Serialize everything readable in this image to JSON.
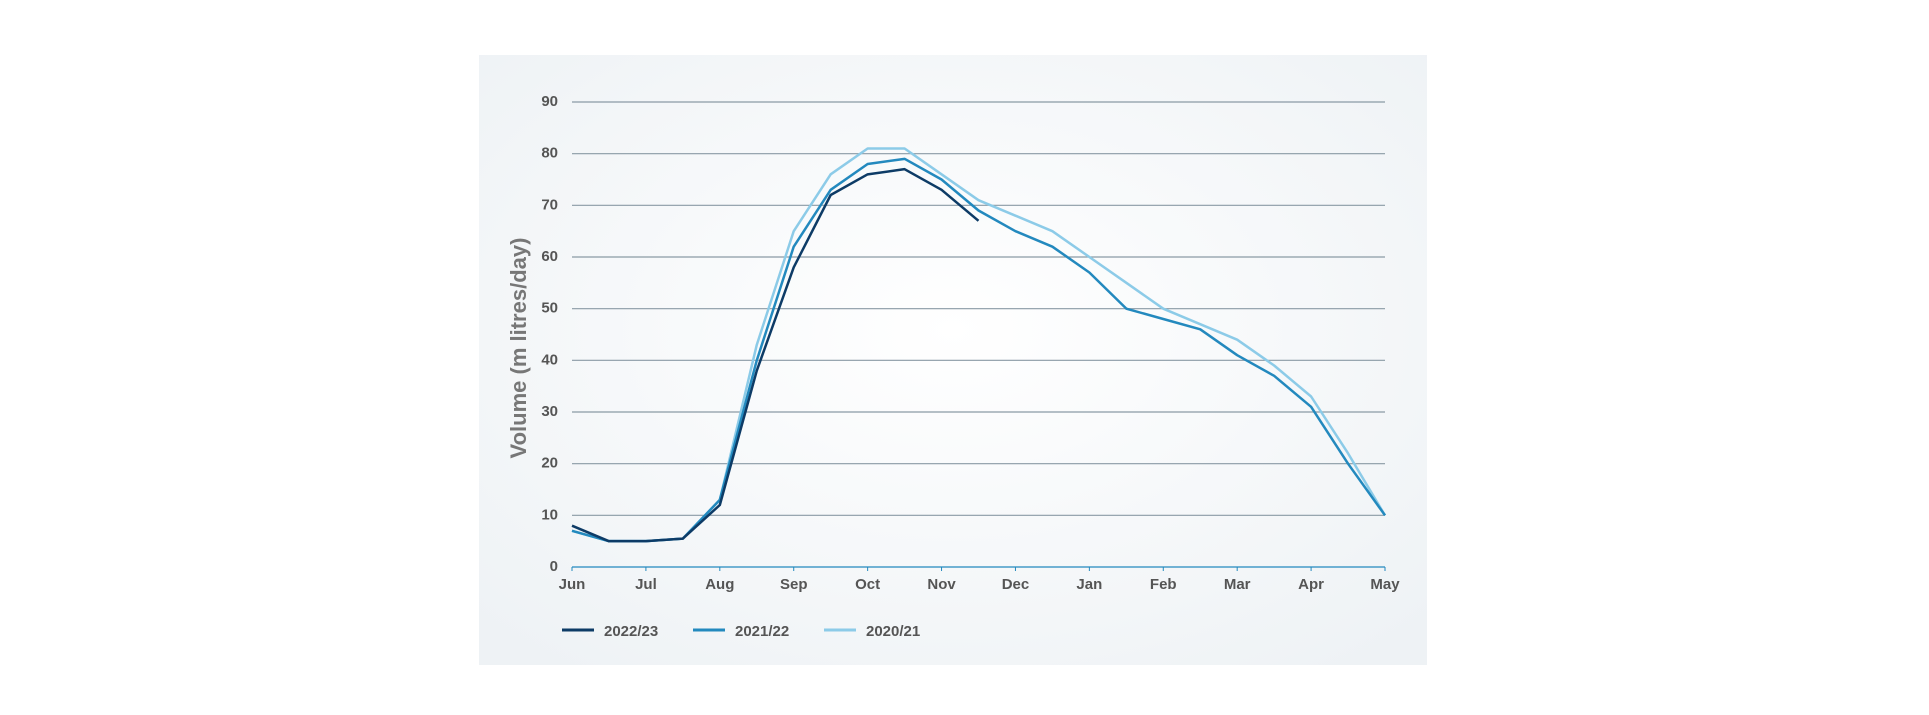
{
  "chart_data": {
    "type": "line",
    "y_label": "Volume (m litres/day)",
    "x": [
      0,
      0.5,
      1,
      1.5,
      2,
      2.5,
      3,
      3.5,
      4,
      4.5,
      5,
      5.5,
      6,
      6.5,
      7,
      7.5,
      8,
      8.5,
      9,
      9.5,
      10,
      10.5,
      11
    ],
    "xlim": [
      0,
      11
    ],
    "xticks": [
      {
        "value": 0,
        "label": "Jun"
      },
      {
        "value": 1,
        "label": "Jul"
      },
      {
        "value": 2,
        "label": "Aug"
      },
      {
        "value": 3,
        "label": "Sep"
      },
      {
        "value": 4,
        "label": "Oct"
      },
      {
        "value": 5,
        "label": "Nov"
      },
      {
        "value": 6,
        "label": "Dec"
      },
      {
        "value": 7,
        "label": "Jan"
      },
      {
        "value": 8,
        "label": "Feb"
      },
      {
        "value": 9,
        "label": "Mar"
      },
      {
        "value": 10,
        "label": "Apr"
      },
      {
        "value": 11,
        "label": "May"
      }
    ],
    "ylim": [
      0,
      90
    ],
    "yticks": [
      0,
      10,
      20,
      30,
      40,
      50,
      60,
      70,
      80,
      90
    ],
    "grid": true,
    "legend": "bottom",
    "series": [
      {
        "name": "2022/23",
        "color": "#0d3b66",
        "values": [
          8,
          5,
          5,
          5.5,
          12,
          38,
          58,
          72,
          76,
          77,
          73,
          67,
          null,
          null,
          null,
          null,
          null,
          null,
          null,
          null,
          null,
          null,
          null
        ]
      },
      {
        "name": "2021/22",
        "color": "#2389be",
        "values": [
          7,
          5,
          5,
          5.5,
          13,
          40,
          62,
          73,
          78,
          79,
          75,
          69,
          65,
          62,
          57,
          50,
          48,
          46,
          41,
          37,
          31,
          20,
          10
        ]
      },
      {
        "name": "2020/21",
        "color": "#8ccbe8",
        "values": [
          7,
          5,
          5,
          5.5,
          13,
          43,
          65,
          76,
          81,
          81,
          76,
          71,
          68,
          65,
          60,
          55,
          50,
          47,
          44,
          39,
          33,
          22,
          10
        ]
      }
    ]
  }
}
